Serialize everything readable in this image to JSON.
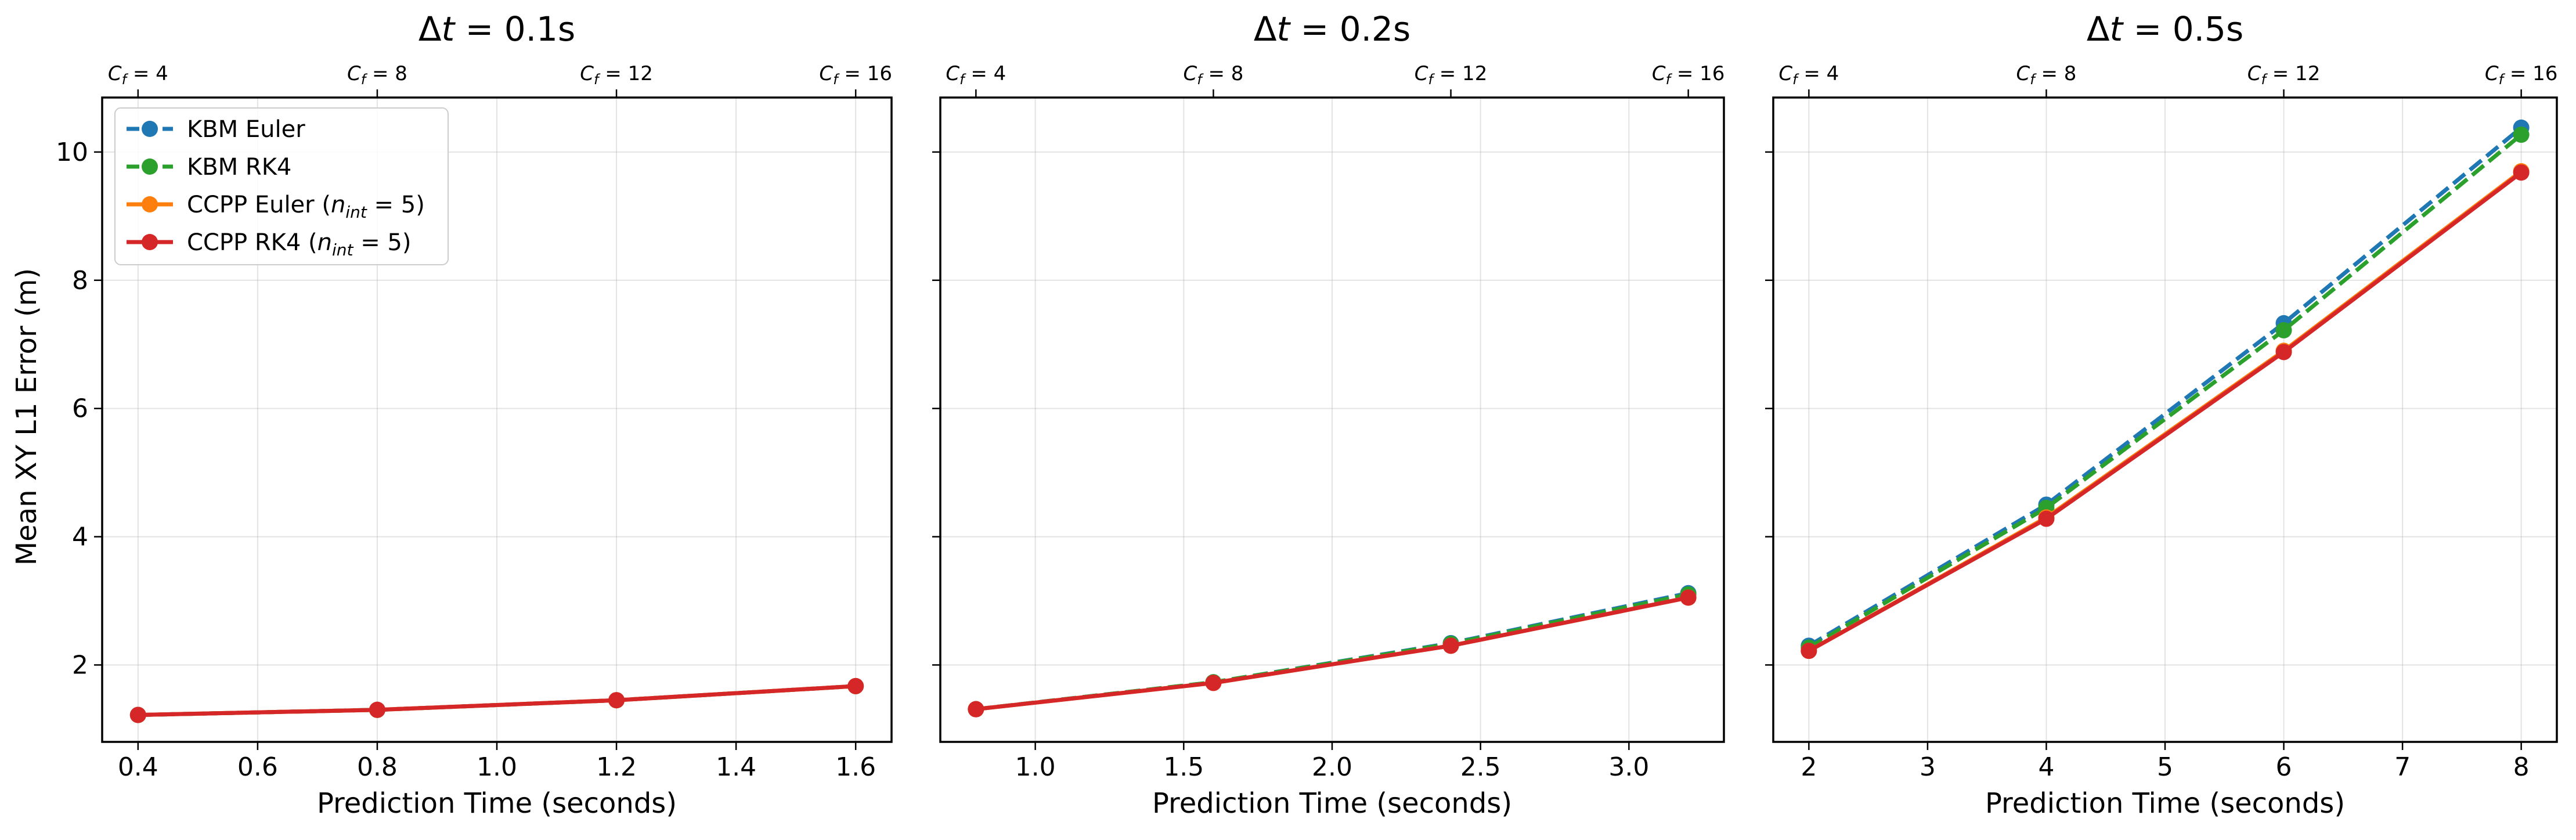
{
  "chart_data": [
    {
      "type": "line",
      "title": "Δt = 0.1s",
      "xlabel": "Prediction Time (seconds)",
      "ylabel": "Mean XY L1 Error (m)",
      "xlim": [
        0.34,
        1.66
      ],
      "ylim": [
        0.8,
        10.85
      ],
      "xticks": [
        0.4,
        0.6,
        0.8,
        1.0,
        1.2,
        1.4,
        1.6
      ],
      "xtick_labels": [
        "0.4",
        "0.6",
        "0.8",
        "1.0",
        "1.2",
        "1.4",
        "1.6"
      ],
      "yticks": [
        2,
        4,
        6,
        8,
        10
      ],
      "ytick_labels": [
        "2",
        "4",
        "6",
        "8",
        "10"
      ],
      "top_ticks": [
        0.4,
        0.8,
        1.2,
        1.6
      ],
      "top_tick_labels": [
        "C_f = 4",
        "C_f = 8",
        "C_f = 12",
        "C_f = 16"
      ],
      "grid": true,
      "legend": "upper-left",
      "x": [
        0.4,
        0.8,
        1.2,
        1.6
      ],
      "series": [
        {
          "name": "KBM Euler",
          "values": [
            1.22,
            1.3,
            1.45,
            1.67
          ]
        },
        {
          "name": "KBM RK4",
          "values": [
            1.22,
            1.3,
            1.45,
            1.67
          ]
        },
        {
          "name": "CCPP Euler (n_int = 5)",
          "values": [
            1.22,
            1.3,
            1.45,
            1.67
          ]
        },
        {
          "name": "CCPP RK4 (n_int = 5)",
          "values": [
            1.22,
            1.3,
            1.45,
            1.67
          ]
        }
      ]
    },
    {
      "type": "line",
      "title": "Δt = 0.2s",
      "xlabel": "Prediction Time (seconds)",
      "ylabel": "",
      "xlim": [
        0.68,
        3.32
      ],
      "ylim": [
        0.8,
        10.85
      ],
      "xticks": [
        1.0,
        1.5,
        2.0,
        2.5,
        3.0
      ],
      "xtick_labels": [
        "1.0",
        "1.5",
        "2.0",
        "2.5",
        "3.0"
      ],
      "yticks": [
        2,
        4,
        6,
        8,
        10
      ],
      "top_ticks": [
        0.8,
        1.6,
        2.4,
        3.2
      ],
      "top_tick_labels": [
        "C_f = 4",
        "C_f = 8",
        "C_f = 12",
        "C_f = 16"
      ],
      "grid": true,
      "x": [
        0.8,
        1.6,
        2.4,
        3.2
      ],
      "series": [
        {
          "name": "KBM Euler",
          "values": [
            1.31,
            1.73,
            2.34,
            3.12
          ]
        },
        {
          "name": "KBM RK4",
          "values": [
            1.31,
            1.73,
            2.33,
            3.1
          ]
        },
        {
          "name": "CCPP Euler (n_int = 5)",
          "values": [
            1.31,
            1.72,
            2.3,
            3.05
          ]
        },
        {
          "name": "CCPP RK4 (n_int = 5)",
          "values": [
            1.31,
            1.72,
            2.3,
            3.05
          ]
        }
      ]
    },
    {
      "type": "line",
      "title": "Δt = 0.5s",
      "xlabel": "Prediction Time (seconds)",
      "ylabel": "",
      "xlim": [
        1.7,
        8.3
      ],
      "ylim": [
        0.8,
        10.85
      ],
      "xticks": [
        2,
        3,
        4,
        5,
        6,
        7,
        8
      ],
      "xtick_labels": [
        "2",
        "3",
        "4",
        "5",
        "6",
        "7",
        "8"
      ],
      "yticks": [
        2,
        4,
        6,
        8,
        10
      ],
      "top_ticks": [
        2,
        4,
        6,
        8
      ],
      "top_tick_labels": [
        "C_f = 4",
        "C_f = 8",
        "C_f = 12",
        "C_f = 16"
      ],
      "grid": true,
      "x": [
        2,
        4,
        6,
        8
      ],
      "series": [
        {
          "name": "KBM Euler",
          "values": [
            2.3,
            4.5,
            7.33,
            10.38
          ]
        },
        {
          "name": "KBM RK4",
          "values": [
            2.27,
            4.45,
            7.22,
            10.27
          ]
        },
        {
          "name": "CCPP Euler (n_int = 5)",
          "values": [
            2.22,
            4.3,
            6.9,
            9.7
          ]
        },
        {
          "name": "CCPP RK4 (n_int = 5)",
          "values": [
            2.22,
            4.28,
            6.88,
            9.68
          ]
        }
      ]
    }
  ],
  "legend_entries": [
    {
      "main": "KBM Euler",
      "sub": "",
      "suffix": "",
      "color": "#1f77b4",
      "dash": true
    },
    {
      "main": "KBM RK4",
      "sub": "",
      "suffix": "",
      "color": "#2ca02c",
      "dash": true
    },
    {
      "main": "CCPP Euler (",
      "math_n": "n",
      "sub": "int",
      "suffix": " = 5)",
      "color": "#ff7f0e",
      "dash": false
    },
    {
      "main": "CCPP RK4 (",
      "math_n": "n",
      "sub": "int",
      "suffix": " = 5)",
      "color": "#d62728",
      "dash": false
    }
  ],
  "series_colors": [
    "#1f77b4",
    "#2ca02c",
    "#ff7f0e",
    "#d62728"
  ],
  "series_dashed": [
    true,
    true,
    false,
    false
  ]
}
